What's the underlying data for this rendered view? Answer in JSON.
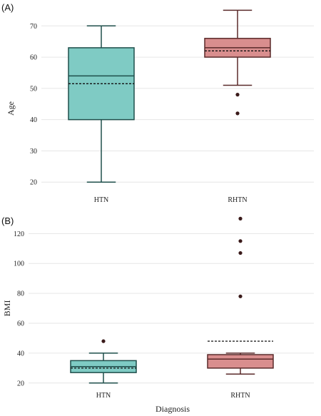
{
  "chart_data": [
    {
      "type": "box",
      "panel_label": "(A)",
      "ylabel": "Age",
      "xlabel": "",
      "ylim": [
        18,
        76
      ],
      "yticks": [
        20,
        30,
        40,
        50,
        60,
        70
      ],
      "grid": true,
      "categories": [
        "HTN",
        "RHTN"
      ],
      "boxes": [
        {
          "category": "HTN",
          "whisker_low": 20,
          "q1": 40,
          "median": 54,
          "q3": 63,
          "whisker_high": 70,
          "mean": 51.5,
          "outliers": [],
          "color": "#7fcbc4",
          "stroke": "#1f4f4b"
        },
        {
          "category": "RHTN",
          "whisker_low": 51,
          "q1": 60,
          "median": 63,
          "q3": 66,
          "whisker_high": 75,
          "mean": 62,
          "outliers": [
            48,
            42
          ],
          "color": "#d98e8e",
          "stroke": "#5a2a2a"
        }
      ]
    },
    {
      "type": "box",
      "panel_label": "(B)",
      "ylabel": "BMI",
      "xlabel": "Diagnosis",
      "ylim": [
        18,
        134
      ],
      "yticks": [
        20,
        40,
        60,
        80,
        100,
        120
      ],
      "grid": true,
      "categories": [
        "HTN",
        "RHTN"
      ],
      "boxes": [
        {
          "category": "HTN",
          "whisker_low": 20,
          "q1": 27,
          "median": 31,
          "q3": 35,
          "whisker_high": 40,
          "mean": 30,
          "outliers": [
            48
          ],
          "color": "#7fcbc4",
          "stroke": "#1f4f4b"
        },
        {
          "category": "RHTN",
          "whisker_low": 26,
          "q1": 30,
          "median": 36,
          "q3": 39,
          "whisker_high": 40,
          "mean": 48,
          "outliers": [
            78,
            107,
            115,
            130
          ],
          "color": "#d98e8e",
          "stroke": "#5a2a2a"
        }
      ]
    }
  ]
}
